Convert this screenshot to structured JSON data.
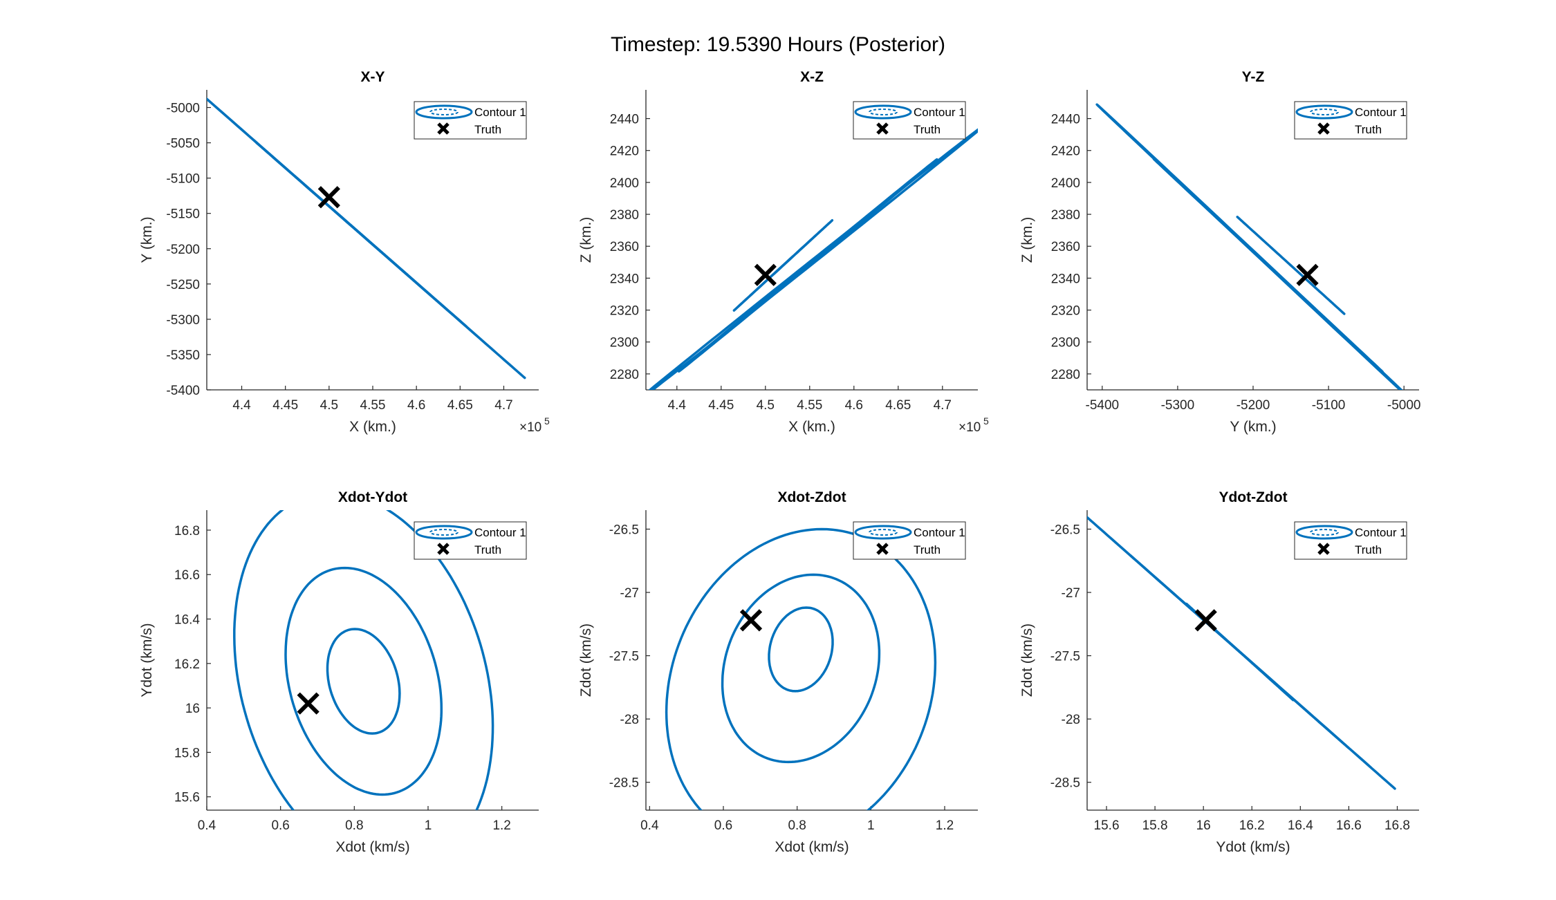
{
  "figure": {
    "title": "Timestep: 19.5390 Hours (Posterior)",
    "contour_color": "#0072bd",
    "truth_color": "#000000"
  },
  "legend": {
    "contour_label": "Contour 1",
    "truth_label": "Truth"
  },
  "chart_data": [
    {
      "type": "contour",
      "title": "X-Y",
      "xlabel": "X (km.)",
      "ylabel": "Y (km.)",
      "x_exponent": "5",
      "xlim": [
        4.36,
        4.74
      ],
      "ylim": [
        -5400,
        -4975
      ],
      "xticks": [
        4.4,
        4.45,
        4.5,
        4.55,
        4.6,
        4.65,
        4.7
      ],
      "xticklabels": [
        "4.4",
        "4.45",
        "4.5",
        "4.55",
        "4.6",
        "4.65",
        "4.7"
      ],
      "yticks": [
        -5400,
        -5350,
        -5300,
        -5250,
        -5200,
        -5150,
        -5100,
        -5050,
        -5000
      ],
      "yticklabels": [
        "-5400",
        "-5350",
        "-5300",
        "-5250",
        "-5200",
        "-5150",
        "-5100",
        "-5050",
        "-5000"
      ],
      "truth": [
        4.5,
        -5127
      ],
      "legend_position": "top-right",
      "ellipses": [
        {
          "cx": 4.537,
          "cy": -5180,
          "rx": 0.187,
          "ry": 203,
          "slope": -1.0,
          "width": 0.012
        },
        {
          "cx": 4.537,
          "cy": -5180,
          "rx": 0.12,
          "ry": 130,
          "slope": -1.0,
          "width": 0.008
        },
        {
          "cx": 4.537,
          "cy": -5180,
          "rx": 0.06,
          "ry": 65,
          "slope": -1.0,
          "width": 0.004
        }
      ]
    },
    {
      "type": "contour",
      "title": "X-Z",
      "xlabel": "X (km.)",
      "ylabel": "Z (km.)",
      "x_exponent": "5",
      "xlim": [
        4.365,
        4.74
      ],
      "ylim": [
        2270,
        2458
      ],
      "xticks": [
        4.4,
        4.45,
        4.5,
        4.55,
        4.6,
        4.65,
        4.7
      ],
      "xticklabels": [
        "4.4",
        "4.45",
        "4.5",
        "4.55",
        "4.6",
        "4.65",
        "4.7"
      ],
      "yticks": [
        2280,
        2300,
        2320,
        2340,
        2360,
        2380,
        2400,
        2420,
        2440
      ],
      "yticklabels": [
        "2280",
        "2300",
        "2320",
        "2340",
        "2360",
        "2380",
        "2400",
        "2420",
        "2440"
      ],
      "truth": [
        4.5,
        2342
      ],
      "legend_position": "top-right",
      "ellipses": [
        {
          "cx": 4.548,
          "cy": 2348,
          "rx": 0.2,
          "ry": 88,
          "slope": 1.0,
          "width": 0.06
        },
        {
          "cx": 4.548,
          "cy": 2348,
          "rx": 0.145,
          "ry": 66,
          "slope": 1.0,
          "width": 0.04
        },
        {
          "cx": 4.52,
          "cy": 2348,
          "rx": 0.055,
          "ry": 28,
          "slope": 1.0,
          "width": 0.02
        }
      ]
    },
    {
      "type": "contour",
      "title": "Y-Z",
      "xlabel": "Y (km.)",
      "ylabel": "Z (km.)",
      "x_exponent": "",
      "xlim": [
        -5420,
        -4980
      ],
      "ylim": [
        2270,
        2458
      ],
      "xticks": [
        -5400,
        -5300,
        -5200,
        -5100,
        -5000
      ],
      "xticklabels": [
        "-5400",
        "-5300",
        "-5200",
        "-5100",
        "-5000"
      ],
      "yticks": [
        2280,
        2300,
        2320,
        2340,
        2360,
        2380,
        2400,
        2420,
        2440
      ],
      "yticklabels": [
        "2280",
        "2300",
        "2320",
        "2340",
        "2360",
        "2380",
        "2400",
        "2420",
        "2440"
      ],
      "truth": [
        -5128,
        2342
      ],
      "legend_position": "top-right",
      "ellipses": [
        {
          "cx": -5180,
          "cy": 2348,
          "rx": 225,
          "ry": 100,
          "slope": -1.0,
          "width": 0.07
        },
        {
          "cx": -5180,
          "cy": 2348,
          "rx": 150,
          "ry": 66,
          "slope": -1.0,
          "width": 0.05
        },
        {
          "cx": -5150,
          "cy": 2348,
          "rx": 70,
          "ry": 30,
          "slope": -1.0,
          "width": 0.025
        }
      ]
    },
    {
      "type": "contour",
      "title": "Xdot-Ydot",
      "xlabel": "Xdot (km/s)",
      "ylabel": "Ydot (km/s)",
      "x_exponent": "",
      "xlim": [
        0.4,
        1.3
      ],
      "ylim": [
        15.54,
        16.89
      ],
      "xticks": [
        0.4,
        0.6,
        0.8,
        1.0,
        1.2
      ],
      "xticklabels": [
        "0.4",
        "0.6",
        "0.8",
        "1",
        "1.2"
      ],
      "yticks": [
        15.6,
        15.8,
        16.0,
        16.2,
        16.4,
        16.6,
        16.8
      ],
      "yticklabels": [
        "15.6",
        "15.8",
        "16",
        "16.2",
        "16.4",
        "16.6",
        "16.8"
      ],
      "truth": [
        0.675,
        16.02
      ],
      "legend_position": "top-right",
      "ellipses_axis": [
        {
          "cx": 0.825,
          "cy": 16.12,
          "a": 0.095,
          "b": 0.235,
          "tilt": -0.15
        },
        {
          "cx": 0.825,
          "cy": 16.12,
          "a": 0.205,
          "b": 0.51,
          "tilt": -0.15
        },
        {
          "cx": 0.825,
          "cy": 16.12,
          "a": 0.34,
          "b": 0.85,
          "tilt": -0.15
        }
      ]
    },
    {
      "type": "contour",
      "title": "Xdot-Zdot",
      "xlabel": "Xdot (km/s)",
      "ylabel": "Zdot (km/s)",
      "x_exponent": "",
      "xlim": [
        0.39,
        1.29
      ],
      "ylim": [
        -28.72,
        -26.35
      ],
      "xticks": [
        0.4,
        0.6,
        0.8,
        1.0,
        1.2
      ],
      "xticklabels": [
        "0.4",
        "0.6",
        "0.8",
        "1",
        "1.2"
      ],
      "yticks": [
        -28.5,
        -28,
        -27.5,
        -27,
        -26.5
      ],
      "yticklabels": [
        "-28.5",
        "-28",
        "-27.5",
        "-27",
        "-26.5"
      ],
      "truth": [
        0.675,
        -27.22
      ],
      "legend_position": "top-right",
      "ellipses_axis": [
        {
          "cx": 0.81,
          "cy": -27.45,
          "a": 0.085,
          "b": 0.33,
          "tilt": 0.12
        },
        {
          "cx": 0.81,
          "cy": -27.6,
          "a": 0.21,
          "b": 0.74,
          "tilt": 0.12
        },
        {
          "cx": 0.81,
          "cy": -27.75,
          "a": 0.36,
          "b": 1.25,
          "tilt": 0.12
        }
      ]
    },
    {
      "type": "contour",
      "title": "Ydot-Zdot",
      "xlabel": "Ydot (km/s)",
      "ylabel": "Zdot (km/s)",
      "x_exponent": "",
      "xlim": [
        15.52,
        16.89
      ],
      "ylim": [
        -28.72,
        -26.35
      ],
      "xticks": [
        15.6,
        15.8,
        16.0,
        16.2,
        16.4,
        16.6,
        16.8
      ],
      "xticklabels": [
        "15.6",
        "15.8",
        "16",
        "16.2",
        "16.4",
        "16.6",
        "16.8"
      ],
      "yticks": [
        -28.5,
        -28,
        -27.5,
        -27,
        -26.5
      ],
      "yticklabels": [
        "-28.5",
        "-28",
        "-27.5",
        "-27",
        "-26.5"
      ],
      "truth": [
        16.01,
        -27.22
      ],
      "legend_position": "top-right",
      "ellipses": [
        {
          "cx": 16.15,
          "cy": -27.47,
          "rx": 0.64,
          "ry": 1.08,
          "slope": -1.0,
          "width": 0.012
        },
        {
          "cx": 16.15,
          "cy": -27.47,
          "rx": 0.45,
          "ry": 0.76,
          "slope": -1.0,
          "width": 0.008
        },
        {
          "cx": 16.15,
          "cy": -27.47,
          "rx": 0.22,
          "ry": 0.38,
          "slope": -1.0,
          "width": 0.004
        }
      ]
    }
  ]
}
